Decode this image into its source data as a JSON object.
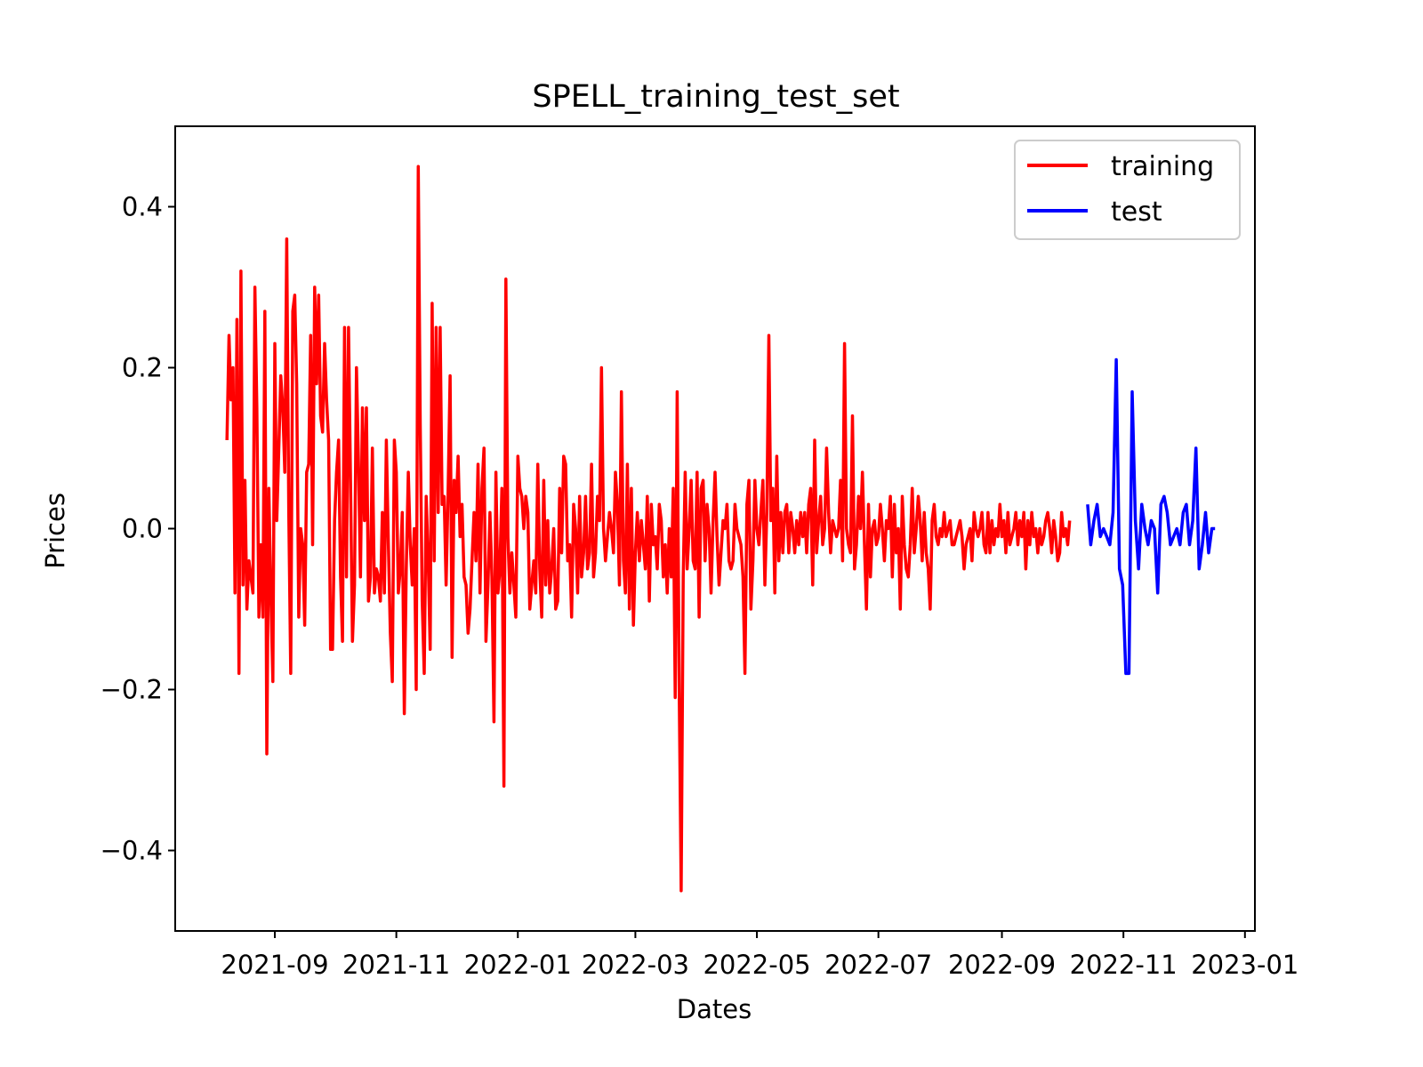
{
  "chart_data": {
    "type": "line",
    "title": "SPELL_training_test_set",
    "xlabel": "Dates",
    "ylabel": "Prices",
    "xlim": [
      "2021-07-13",
      "2023-01-06"
    ],
    "ylim": [
      -0.5,
      0.5
    ],
    "grid": false,
    "legend_position": "top-right",
    "x_ticks": [
      "2021-09",
      "2021-11",
      "2022-01",
      "2022-03",
      "2022-05",
      "2022-07",
      "2022-09",
      "2022-11",
      "2023-01"
    ],
    "y_ticks": [
      {
        "value": 0.4,
        "label": "0.4"
      },
      {
        "value": 0.2,
        "label": "0.2"
      },
      {
        "value": 0.0,
        "label": "0.0"
      },
      {
        "value": -0.2,
        "label": "−0.2"
      },
      {
        "value": -0.4,
        "label": "−0.4"
      }
    ],
    "series": [
      {
        "name": "training",
        "color": "#ff0000",
        "start_date": "2021-08-08",
        "values": [
          0.11,
          0.24,
          0.16,
          0.2,
          -0.08,
          0.26,
          -0.18,
          0.32,
          -0.07,
          0.06,
          -0.1,
          -0.04,
          -0.06,
          -0.08,
          0.3,
          0.15,
          -0.11,
          -0.02,
          -0.11,
          0.27,
          -0.28,
          0.05,
          -0.08,
          -0.19,
          0.23,
          0.01,
          0.1,
          0.19,
          0.15,
          0.07,
          0.36,
          0.02,
          -0.18,
          0.27,
          0.29,
          0.18,
          -0.11,
          0.0,
          -0.02,
          -0.12,
          0.07,
          0.08,
          0.24,
          -0.02,
          0.3,
          0.18,
          0.29,
          0.14,
          0.12,
          0.23,
          0.16,
          0.11,
          -0.15,
          -0.15,
          0.01,
          0.07,
          0.11,
          -0.06,
          -0.14,
          0.25,
          -0.06,
          0.25,
          0.06,
          -0.14,
          -0.07,
          0.2,
          0.08,
          -0.06,
          0.15,
          0.01,
          0.15,
          -0.09,
          -0.06,
          0.1,
          -0.08,
          -0.05,
          -0.06,
          -0.09,
          0.02,
          -0.08,
          0.11,
          -0.02,
          -0.13,
          -0.19,
          0.11,
          0.07,
          -0.08,
          -0.05,
          0.02,
          -0.23,
          -0.05,
          0.07,
          -0.02,
          -0.07,
          0.0,
          -0.2,
          0.45,
          0.13,
          -0.09,
          -0.18,
          0.04,
          -0.04,
          -0.15,
          0.28,
          -0.04,
          0.25,
          0.02,
          0.25,
          0.03,
          0.04,
          -0.07,
          0.05,
          0.19,
          -0.16,
          0.06,
          0.02,
          0.09,
          -0.01,
          0.03,
          -0.06,
          -0.07,
          -0.13,
          -0.1,
          -0.04,
          0.02,
          -0.04,
          0.08,
          -0.08,
          0.05,
          0.1,
          -0.14,
          -0.07,
          0.02,
          -0.06,
          -0.24,
          0.07,
          -0.08,
          -0.05,
          0.05,
          -0.32,
          0.31,
          -0.01,
          -0.08,
          -0.03,
          -0.07,
          -0.11,
          0.09,
          0.05,
          0.04,
          0.0,
          0.04,
          0.02,
          -0.1,
          -0.07,
          -0.04,
          -0.08,
          0.08,
          -0.05,
          -0.11,
          0.06,
          -0.07,
          0.01,
          -0.08,
          -0.05,
          0.0,
          -0.1,
          -0.09,
          0.05,
          -0.03,
          0.09,
          0.08,
          -0.04,
          -0.02,
          -0.11,
          0.03,
          0.0,
          -0.08,
          0.04,
          -0.06,
          -0.03,
          0.04,
          -0.05,
          -0.03,
          0.08,
          -0.06,
          -0.03,
          0.04,
          0.01,
          0.2,
          0.0,
          -0.04,
          -0.01,
          0.02,
          0.0,
          -0.03,
          0.07,
          0.03,
          -0.07,
          0.17,
          -0.04,
          -0.08,
          0.08,
          -0.1,
          0.05,
          -0.12,
          -0.03,
          0.02,
          -0.04,
          0.01,
          -0.02,
          -0.05,
          0.04,
          -0.09,
          0.03,
          -0.02,
          -0.01,
          -0.05,
          0.03,
          0.01,
          -0.06,
          -0.02,
          -0.08,
          0.0,
          -0.06,
          0.05,
          -0.21,
          0.17,
          -0.2,
          -0.45,
          -0.06,
          0.07,
          -0.05,
          0.0,
          0.06,
          -0.04,
          -0.05,
          0.07,
          -0.11,
          0.05,
          0.06,
          -0.04,
          0.03,
          0.0,
          -0.08,
          0.01,
          0.07,
          -0.01,
          -0.07,
          -0.03,
          0.01,
          0.0,
          0.03,
          -0.04,
          -0.05,
          -0.04,
          0.03,
          0.0,
          -0.01,
          -0.02,
          -0.06,
          -0.18,
          0.03,
          0.06,
          -0.1,
          -0.04,
          0.06,
          0.0,
          -0.02,
          0.02,
          0.06,
          -0.07,
          0.02,
          0.24,
          0.01,
          0.05,
          -0.08,
          0.09,
          -0.04,
          0.02,
          -0.03,
          0.02,
          0.03,
          -0.03,
          0.02,
          0.0,
          -0.03,
          0.01,
          -0.02,
          0.02,
          -0.01,
          0.02,
          -0.03,
          0.03,
          0.05,
          -0.07,
          0.11,
          -0.03,
          0.01,
          0.04,
          -0.02,
          0.0,
          0.1,
          0.02,
          -0.03,
          0.01,
          0.0,
          -0.01,
          0.0,
          0.06,
          -0.04,
          0.23,
          0.0,
          -0.02,
          -0.03,
          0.14,
          -0.05,
          -0.02,
          0.04,
          0.0,
          0.07,
          -0.02,
          -0.1,
          0.03,
          -0.06,
          0.0,
          0.01,
          -0.02,
          -0.01,
          0.03,
          0.0,
          -0.04,
          0.01,
          0.0,
          0.04,
          -0.06,
          0.03,
          -0.03,
          0.0,
          -0.1,
          0.04,
          -0.02,
          -0.05,
          -0.06,
          -0.02,
          0.05,
          -0.03,
          0.0,
          0.04,
          0.01,
          -0.04,
          0.02,
          -0.03,
          -0.05,
          -0.1,
          0.01,
          0.03,
          -0.01,
          -0.02,
          0.0,
          -0.01,
          0.02,
          -0.01,
          0.0,
          0.01,
          -0.02,
          -0.02,
          -0.01,
          0.0,
          0.01,
          -0.01,
          -0.05,
          -0.02,
          -0.01,
          0.0,
          -0.04,
          0.02,
          0.0,
          -0.01,
          0.0,
          0.02,
          -0.02,
          -0.03,
          0.02,
          -0.03,
          0.01,
          -0.02,
          0.0,
          -0.01,
          0.03,
          -0.01,
          0.01,
          -0.03,
          0.02,
          -0.02,
          -0.01,
          0.0,
          0.02,
          -0.02,
          0.01,
          -0.01,
          0.02,
          -0.05,
          0.01,
          -0.02,
          0.02,
          -0.01,
          0.0,
          -0.03,
          0.0,
          -0.02,
          -0.01,
          0.01,
          0.02,
          0.0,
          -0.03,
          0.01,
          -0.01,
          -0.04,
          -0.03,
          0.02,
          -0.01,
          0.0,
          -0.02,
          0.01
        ],
        "step_days": 1
      },
      {
        "name": "test",
        "color": "#0000ff",
        "start_date": "2022-10-14",
        "values": [
          0.03,
          -0.02,
          0.01,
          0.03,
          -0.01,
          0.0,
          -0.01,
          -0.02,
          0.02,
          0.21,
          -0.05,
          -0.07,
          -0.18,
          -0.18,
          0.17,
          0.01,
          -0.05,
          0.03,
          0.0,
          -0.02,
          0.01,
          0.0,
          -0.08,
          0.03,
          0.04,
          0.02,
          -0.02,
          -0.01,
          0.0,
          -0.02,
          0.02,
          0.03,
          -0.02,
          0.01,
          0.1,
          -0.05,
          -0.02,
          0.02,
          -0.03,
          0.0,
          0.0
        ],
        "step_days": 1.6
      }
    ]
  }
}
